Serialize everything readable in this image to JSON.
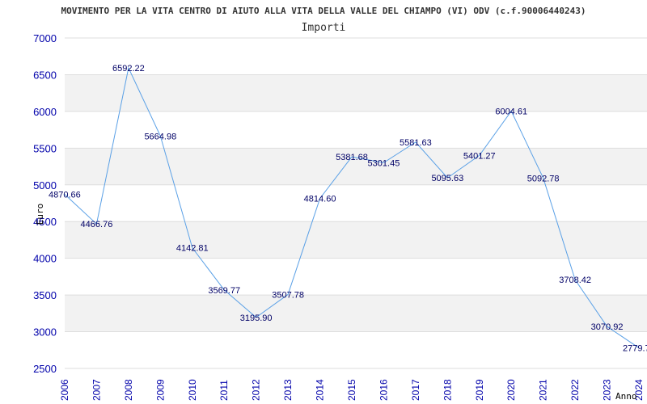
{
  "chart_data": {
    "type": "line",
    "title": "MOVIMENTO PER LA VITA CENTRO DI AIUTO ALLA VITA DELLA VALLE DEL CHIAMPO (VI) ODV (c.f.90006440243)",
    "subtitle": "Importi",
    "xlabel": "Anno",
    "ylabel": "Euro",
    "ylim": [
      2500,
      7000
    ],
    "yticks": [
      "2500",
      "3000",
      "3500",
      "4000",
      "4500",
      "5000",
      "5500",
      "6000",
      "6500",
      "7000"
    ],
    "categories": [
      "2006",
      "2007",
      "2008",
      "2009",
      "2010",
      "2011",
      "2012",
      "2013",
      "2014",
      "2015",
      "2016",
      "2017",
      "2018",
      "2019",
      "2020",
      "2021",
      "2022",
      "2023",
      "2024"
    ],
    "values": [
      4870.66,
      4466.76,
      6592.22,
      5664.98,
      4142.81,
      3569.77,
      3195.9,
      3507.78,
      4814.6,
      5381.68,
      5301.45,
      5581.63,
      5095.63,
      5401.27,
      6004.61,
      5092.78,
      3708.42,
      3070.92,
      2779.7
    ],
    "data_labels": [
      "4870.66",
      "4466.76",
      "6592.22",
      "5664.98",
      "4142.81",
      "3569.77",
      "3195.90",
      "3507.78",
      "4814.60",
      "5381.68",
      "5301.45",
      "5581.63",
      "5095.63",
      "5401.27",
      "6004.61",
      "5092.78",
      "3708.42",
      "3070.92",
      "2779.7"
    ],
    "grid": true,
    "colors": {
      "line": "#5aa0e6",
      "band": "#f2f2f2",
      "grid": "#dddddd",
      "axis_text": "#0000aa",
      "label_text": "#000066"
    }
  }
}
